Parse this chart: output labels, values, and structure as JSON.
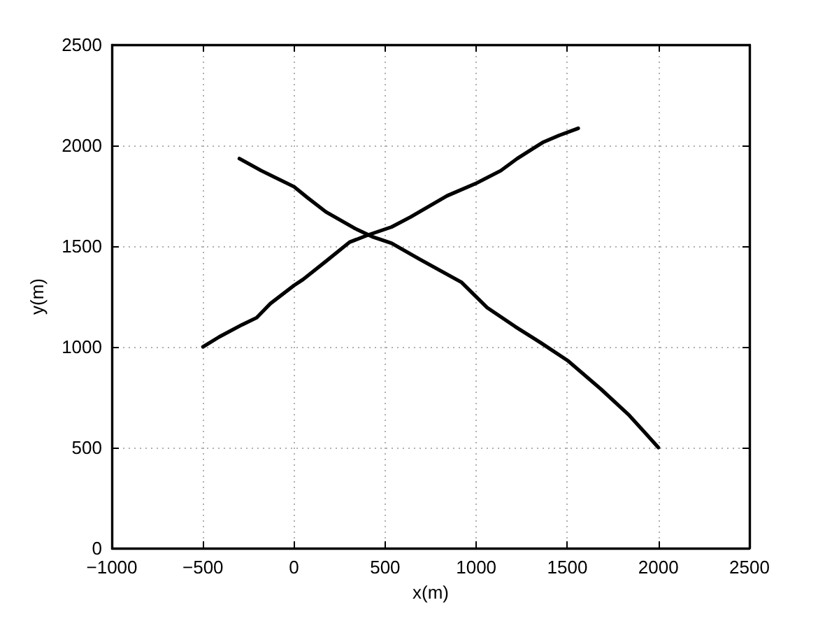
{
  "chart_data": {
    "type": "line",
    "xlabel": "x(m)",
    "ylabel": "y(m)",
    "xlim": [
      -1000,
      2500
    ],
    "xticks": [
      {
        "value": -1000,
        "label": "−1000"
      },
      {
        "value": -500,
        "label": "−500"
      },
      0,
      500,
      1000,
      1500,
      2000,
      2500
    ],
    "ylim": [
      0,
      2500
    ],
    "yticks": [
      0,
      500,
      1000,
      1500,
      2000,
      2500
    ],
    "grid": true,
    "series": [
      {
        "color": "#000000",
        "x": [
          -500,
          -410,
          -285,
          -205,
          -130,
          0,
          50,
          175,
          305,
          405,
          535,
          640,
          840,
          995,
          1135,
          1225,
          1365,
          1455,
          1560
        ],
        "values": [
          1000,
          1050,
          1110,
          1145,
          1215,
          1305,
          1335,
          1425,
          1520,
          1555,
          1595,
          1645,
          1750,
          1810,
          1875,
          1935,
          2015,
          2050,
          2085
        ]
      },
      {
        "color": "#000000",
        "x": [
          -300,
          -180,
          0,
          75,
          175,
          330,
          435,
          535,
          690,
          920,
          1060,
          1215,
          1355,
          1505,
          1685,
          1840,
          1930,
          2000
        ],
        "values": [
          1935,
          1875,
          1795,
          1740,
          1670,
          1590,
          1545,
          1515,
          1435,
          1320,
          1195,
          1100,
          1020,
          930,
          790,
          660,
          570,
          500
        ]
      }
    ]
  }
}
